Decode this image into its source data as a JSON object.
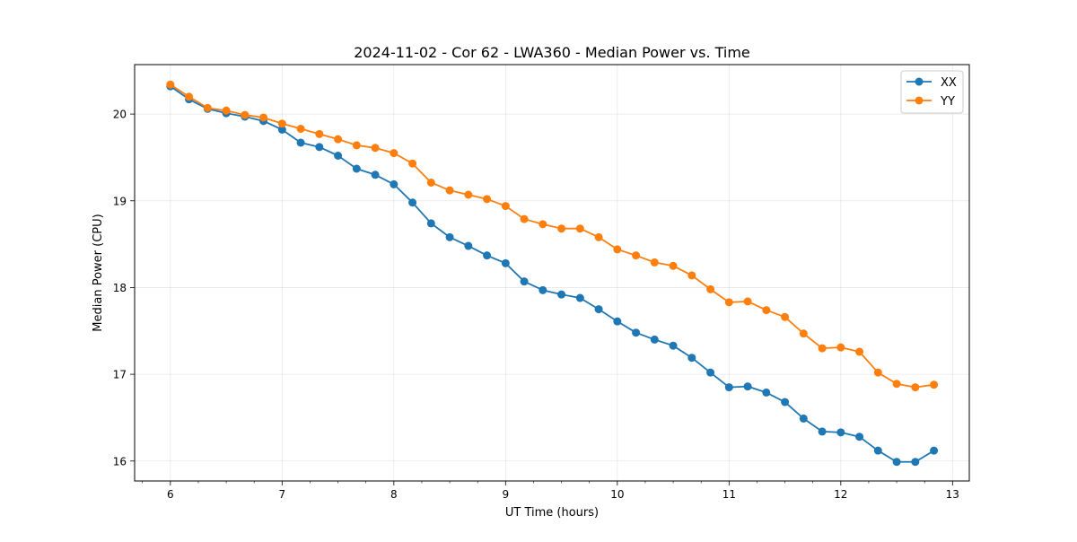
{
  "chart_data": {
    "type": "line",
    "title": "2024-11-02 - Cor 62 - LWA360 - Median Power vs. Time",
    "xlabel": "UT Time (hours)",
    "ylabel": "Median Power (CPU)",
    "xlim": [
      5.68,
      13.15
    ],
    "ylim": [
      15.77,
      20.57
    ],
    "x_ticks": [
      6,
      7,
      8,
      9,
      10,
      11,
      12,
      13
    ],
    "y_ticks": [
      16,
      17,
      18,
      19,
      20
    ],
    "x_minor_step": 0.25,
    "grid": true,
    "legend_position": "upper right",
    "x": [
      6.0,
      6.1667,
      6.3333,
      6.5,
      6.6667,
      6.8333,
      7.0,
      7.1667,
      7.3333,
      7.5,
      7.6667,
      7.8333,
      8.0,
      8.1667,
      8.3333,
      8.5,
      8.6667,
      8.8333,
      9.0,
      9.1667,
      9.3333,
      9.5,
      9.6667,
      9.8333,
      10.0,
      10.1667,
      10.3333,
      10.5,
      10.6667,
      10.8333,
      11.0,
      11.1667,
      11.3333,
      11.5,
      11.6667,
      11.8333,
      12.0,
      12.1667,
      12.3333,
      12.5,
      12.6667,
      12.8333
    ],
    "series": [
      {
        "name": "XX",
        "color": "#1f77b4",
        "values": [
          20.32,
          20.17,
          20.06,
          20.01,
          19.97,
          19.92,
          19.82,
          19.67,
          19.62,
          19.52,
          19.37,
          19.3,
          19.19,
          18.98,
          18.74,
          18.58,
          18.48,
          18.37,
          18.28,
          18.07,
          17.97,
          17.92,
          17.88,
          17.75,
          17.61,
          17.48,
          17.4,
          17.33,
          17.19,
          17.02,
          16.85,
          16.86,
          16.79,
          16.68,
          16.49,
          16.34,
          16.33,
          16.28,
          16.12,
          15.99,
          15.99,
          16.12
        ]
      },
      {
        "name": "YY",
        "color": "#ff7f0e",
        "values": [
          20.34,
          20.2,
          20.07,
          20.04,
          19.99,
          19.96,
          19.89,
          19.83,
          19.77,
          19.71,
          19.64,
          19.61,
          19.55,
          19.43,
          19.21,
          19.12,
          19.07,
          19.02,
          18.94,
          18.79,
          18.73,
          18.68,
          18.68,
          18.58,
          18.44,
          18.37,
          18.29,
          18.25,
          18.14,
          17.98,
          17.83,
          17.84,
          17.74,
          17.66,
          17.47,
          17.3,
          17.31,
          17.26,
          17.02,
          16.89,
          16.85,
          16.88
        ]
      }
    ]
  }
}
